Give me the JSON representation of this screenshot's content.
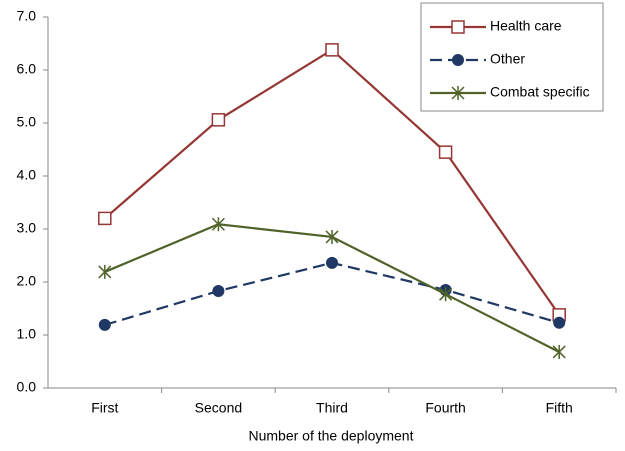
{
  "chart_data": {
    "type": "line",
    "x_label": "Number of the deployment",
    "categories": [
      "First",
      "Second",
      "Third",
      "Fourth",
      "Fifth"
    ],
    "series": [
      {
        "name": "Health care",
        "color": "#953735",
        "marker": "square",
        "dashed": false,
        "values": [
          3.2,
          5.06,
          6.38,
          4.45,
          1.38
        ]
      },
      {
        "name": "Other",
        "color": "#1f3864",
        "marker": "circle",
        "dashed": true,
        "values": [
          1.19,
          1.83,
          2.36,
          1.85,
          1.23
        ]
      },
      {
        "name": "Combat specific",
        "color": "#4f6228",
        "marker": "star",
        "dashed": false,
        "values": [
          2.19,
          3.09,
          2.85,
          1.77,
          0.68
        ]
      }
    ],
    "ylim": [
      0,
      7
    ],
    "yticks": [
      {
        "value": 0,
        "label": "0.0"
      },
      {
        "value": 1,
        "label": "1.0"
      },
      {
        "value": 2,
        "label": "2.0"
      },
      {
        "value": 3,
        "label": "3.0"
      },
      {
        "value": 4,
        "label": "4.0"
      },
      {
        "value": 5,
        "label": "5.0"
      },
      {
        "value": 6,
        "label": "6.0"
      },
      {
        "value": 7,
        "label": "7.0"
      }
    ],
    "grid": false,
    "legend": "top-right"
  }
}
